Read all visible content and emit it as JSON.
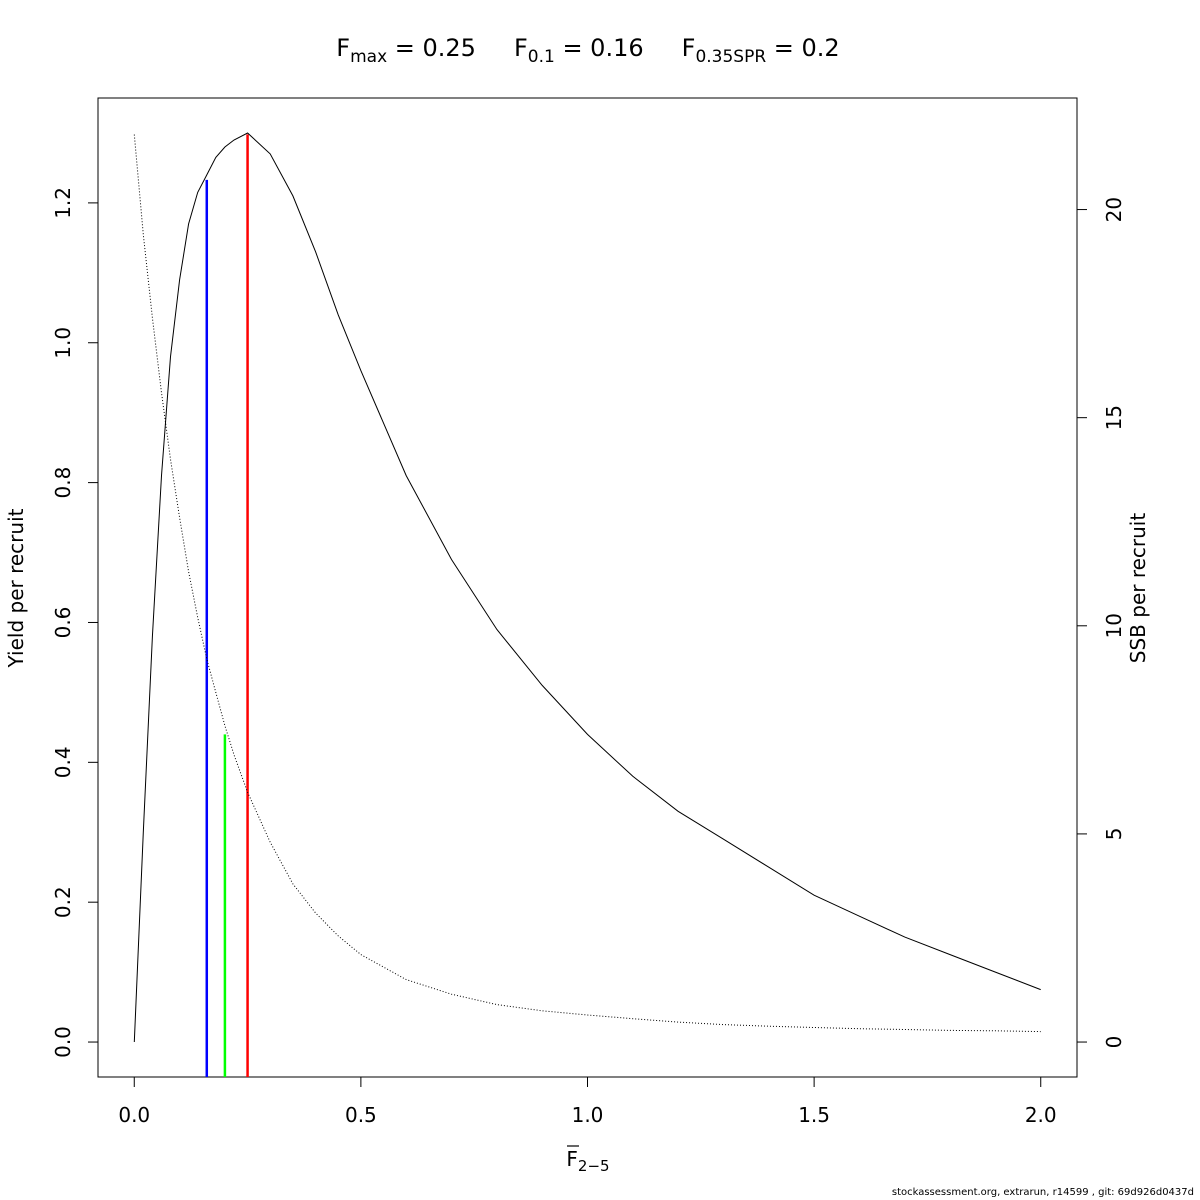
{
  "chart_data": {
    "type": "line",
    "title_parts": [
      {
        "main": "F",
        "sub": "max",
        "rest": " = 0.25"
      },
      {
        "main": "F",
        "sub": "0.1",
        "rest": " = 0.16"
      },
      {
        "main": "F",
        "sub": "0.35SPR",
        "rest": " = 0.2"
      }
    ],
    "xlabel": {
      "main": "F",
      "sub": "2−5",
      "overline": true
    },
    "ylabel_left": "Yield per recruit",
    "ylabel_right": "SSB per recruit",
    "xlim": [
      -0.08,
      2.08
    ],
    "ylim_left": [
      -0.05,
      1.35
    ],
    "ylim_right": [
      -0.84,
      22.68
    ],
    "x_ticks": [
      0.0,
      0.5,
      1.0,
      1.5,
      2.0
    ],
    "x_tick_labels": [
      "0.0",
      "0.5",
      "1.0",
      "1.5",
      "2.0"
    ],
    "y_left_ticks": [
      0.0,
      0.2,
      0.4,
      0.6,
      0.8,
      1.0,
      1.2
    ],
    "y_left_tick_labels": [
      "0.0",
      "0.2",
      "0.4",
      "0.6",
      "0.8",
      "1.0",
      "1.2"
    ],
    "y_right_ticks": [
      0,
      5,
      10,
      15,
      20
    ],
    "y_right_tick_labels": [
      "0",
      "5",
      "10",
      "15",
      "20"
    ],
    "series": [
      {
        "axis": "left",
        "style": "solid",
        "color": "#000000",
        "x": [
          0.0,
          0.02,
          0.04,
          0.06,
          0.08,
          0.1,
          0.12,
          0.14,
          0.16,
          0.18,
          0.2,
          0.22,
          0.25,
          0.3,
          0.35,
          0.4,
          0.45,
          0.5,
          0.6,
          0.7,
          0.8,
          0.9,
          1.0,
          1.1,
          1.2,
          1.3,
          1.4,
          1.5,
          1.6,
          1.7,
          1.8,
          1.9,
          2.0
        ],
        "y": [
          0.0,
          0.3,
          0.58,
          0.81,
          0.98,
          1.09,
          1.17,
          1.215,
          1.24,
          1.265,
          1.28,
          1.29,
          1.3,
          1.27,
          1.21,
          1.13,
          1.04,
          0.96,
          0.81,
          0.69,
          0.59,
          0.51,
          0.44,
          0.38,
          0.33,
          0.29,
          0.25,
          0.21,
          0.18,
          0.15,
          0.125,
          0.1,
          0.075
        ]
      },
      {
        "axis": "right",
        "style": "dotted",
        "color": "#000000",
        "x": [
          0.0,
          0.02,
          0.04,
          0.06,
          0.08,
          0.1,
          0.12,
          0.14,
          0.16,
          0.18,
          0.2,
          0.22,
          0.25,
          0.3,
          0.35,
          0.4,
          0.45,
          0.5,
          0.6,
          0.7,
          0.8,
          0.9,
          1.0,
          1.1,
          1.2,
          1.3,
          1.4,
          1.5,
          1.6,
          1.7,
          1.8,
          1.9,
          2.0
        ],
        "y": [
          21.8,
          19.4,
          17.4,
          15.6,
          14.0,
          12.6,
          11.3,
          10.2,
          9.2,
          8.4,
          7.6,
          6.9,
          6.0,
          4.8,
          3.8,
          3.1,
          2.55,
          2.1,
          1.5,
          1.15,
          0.9,
          0.75,
          0.65,
          0.56,
          0.48,
          0.42,
          0.38,
          0.35,
          0.32,
          0.3,
          0.28,
          0.27,
          0.25
        ]
      }
    ],
    "reference_lines": [
      {
        "name": "F0.1",
        "x": 0.16,
        "y_top": 1.233,
        "color": "#0000ff"
      },
      {
        "name": "F0.35SPR",
        "x": 0.2,
        "y_top": 0.44,
        "color": "#00ff00"
      },
      {
        "name": "Fmax",
        "x": 0.25,
        "y_top": 1.298,
        "color": "#ff0000"
      }
    ],
    "grid": false,
    "legend": "none"
  },
  "footer": "stockassessment.org, extrarun, r14599 , git: 69d926d0437d"
}
